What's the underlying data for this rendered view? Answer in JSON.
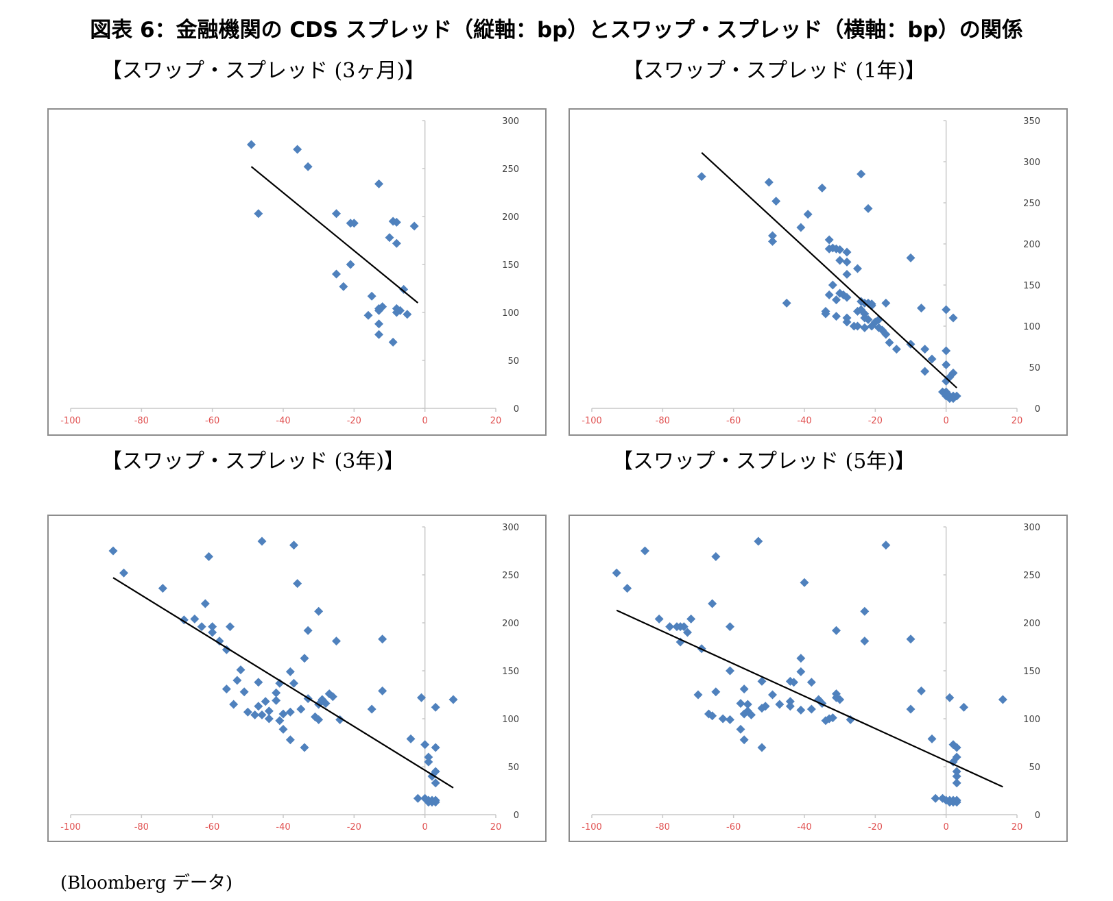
{
  "figure_title": "図表 6：金融機関の CDS スプレッド（縦軸：bp）とスワップ・スプレッド（横軸：bp）の関係",
  "source_note": "(Bloomberg データ)",
  "colors": {
    "marker": "#4F81BD",
    "trendline": "#000000",
    "x_tick_label": "#e05050",
    "y_tick_label": "#404040",
    "axis": "#c8c8c8",
    "frame": "#8c8c8c"
  },
  "chart_data": [
    {
      "type": "scatter",
      "title": "【スワップ・スプレッド (3ヶ月)】",
      "xlim": [
        -100,
        20
      ],
      "ylim": [
        0,
        300
      ],
      "x_ticks": [
        "-100",
        "-80",
        "-60",
        "-40",
        "-20",
        "0",
        "20"
      ],
      "y_ticks": [
        "0",
        "50",
        "100",
        "150",
        "200",
        "250",
        "300"
      ],
      "marker": "diamond",
      "trendline": {
        "x": [
          -49,
          -2
        ],
        "y": [
          252,
          110
        ]
      },
      "points": [
        [
          -49,
          275
        ],
        [
          -36,
          270
        ],
        [
          -33,
          252
        ],
        [
          -47,
          203
        ],
        [
          -25,
          203
        ],
        [
          -21,
          193
        ],
        [
          -20,
          193
        ],
        [
          -13,
          234
        ],
        [
          -9,
          195
        ],
        [
          -8,
          194
        ],
        [
          -3,
          190
        ],
        [
          -10,
          178
        ],
        [
          -8,
          172
        ],
        [
          -21,
          150
        ],
        [
          -25,
          140
        ],
        [
          -23,
          127
        ],
        [
          -6,
          124
        ],
        [
          -15,
          117
        ],
        [
          -12,
          106
        ],
        [
          -13,
          104
        ],
        [
          -8,
          104
        ],
        [
          -7,
          102
        ],
        [
          -13,
          102
        ],
        [
          -8,
          100
        ],
        [
          -5,
          98
        ],
        [
          -16,
          97
        ],
        [
          -13,
          88
        ],
        [
          -13,
          77
        ],
        [
          -9,
          69
        ]
      ]
    },
    {
      "type": "scatter",
      "title": "【スワップ・スプレッド (1年)】",
      "xlim": [
        -100,
        20
      ],
      "ylim": [
        0,
        350
      ],
      "x_ticks": [
        "-100",
        "-80",
        "-60",
        "-40",
        "-20",
        "0",
        "20"
      ],
      "y_ticks": [
        "0",
        "50",
        "100",
        "150",
        "200",
        "250",
        "300",
        "350"
      ],
      "marker": "diamond",
      "trendline": {
        "x": [
          -69,
          3
        ],
        "y": [
          311,
          25
        ]
      },
      "points": [
        [
          -69,
          282
        ],
        [
          -50,
          275
        ],
        [
          -48,
          252
        ],
        [
          -35,
          268
        ],
        [
          -24,
          285
        ],
        [
          -22,
          243
        ],
        [
          -39,
          236
        ],
        [
          -41,
          220
        ],
        [
          -49,
          210
        ],
        [
          -49,
          203
        ],
        [
          -33,
          205
        ],
        [
          -32,
          195
        ],
        [
          -33,
          194
        ],
        [
          -31,
          194
        ],
        [
          -30,
          193
        ],
        [
          -28,
          190
        ],
        [
          -30,
          180
        ],
        [
          -28,
          178
        ],
        [
          -10,
          183
        ],
        [
          -25,
          170
        ],
        [
          -28,
          163
        ],
        [
          -32,
          150
        ],
        [
          -30,
          140
        ],
        [
          -29,
          138
        ],
        [
          -33,
          138
        ],
        [
          -28,
          135
        ],
        [
          -31,
          132
        ],
        [
          -24,
          130
        ],
        [
          -23,
          128
        ],
        [
          -22,
          128
        ],
        [
          -21,
          125
        ],
        [
          -21,
          127
        ],
        [
          -17,
          128
        ],
        [
          -45,
          128
        ],
        [
          -7,
          122
        ],
        [
          0,
          120
        ],
        [
          -24,
          120
        ],
        [
          -25,
          118
        ],
        [
          -23,
          115
        ],
        [
          -34,
          118
        ],
        [
          -34,
          115
        ],
        [
          -31,
          112
        ],
        [
          -23,
          110
        ],
        [
          -22,
          108
        ],
        [
          -20,
          105
        ],
        [
          -19,
          108
        ],
        [
          -28,
          110
        ],
        [
          -28,
          105
        ],
        [
          -25,
          100
        ],
        [
          -26,
          100
        ],
        [
          -23,
          98
        ],
        [
          -21,
          100
        ],
        [
          -19,
          98
        ],
        [
          -18,
          95
        ],
        [
          -17,
          90
        ],
        [
          -16,
          80
        ],
        [
          -14,
          72
        ],
        [
          -10,
          78
        ],
        [
          -6,
          72
        ],
        [
          -4,
          60
        ],
        [
          0,
          70
        ],
        [
          0,
          53
        ],
        [
          -6,
          45
        ],
        [
          2,
          43
        ],
        [
          0,
          33
        ],
        [
          1,
          38
        ],
        [
          2,
          110
        ],
        [
          -1,
          20
        ],
        [
          0,
          20
        ],
        [
          0,
          15
        ],
        [
          1,
          15
        ],
        [
          2,
          15
        ],
        [
          3,
          15
        ],
        [
          1,
          12
        ],
        [
          2,
          12
        ],
        [
          0,
          17
        ]
      ]
    },
    {
      "type": "scatter",
      "title": "【スワップ・スプレッド (3年)】",
      "xlim": [
        -100,
        20
      ],
      "ylim": [
        0,
        300
      ],
      "x_ticks": [
        "-100",
        "-80",
        "-60",
        "-40",
        "-20",
        "0",
        "20"
      ],
      "y_ticks": [
        "0",
        "50",
        "100",
        "150",
        "200",
        "250",
        "300"
      ],
      "marker": "diamond",
      "trendline": {
        "x": [
          -88,
          8
        ],
        "y": [
          247,
          28
        ]
      },
      "points": [
        [
          -88,
          275
        ],
        [
          -85,
          252
        ],
        [
          -74,
          236
        ],
        [
          -46,
          285
        ],
        [
          -37,
          281
        ],
        [
          -61,
          269
        ],
        [
          -36,
          241
        ],
        [
          -62,
          220
        ],
        [
          -30,
          212
        ],
        [
          -68,
          203
        ],
        [
          -65,
          204
        ],
        [
          -60,
          196
        ],
        [
          -63,
          196
        ],
        [
          -55,
          196
        ],
        [
          -60,
          190
        ],
        [
          -58,
          181
        ],
        [
          -56,
          172
        ],
        [
          -25,
          181
        ],
        [
          -12,
          183
        ],
        [
          -33,
          192
        ],
        [
          -34,
          163
        ],
        [
          -52,
          151
        ],
        [
          -38,
          149
        ],
        [
          -53,
          140
        ],
        [
          -47,
          138
        ],
        [
          -41,
          137
        ],
        [
          -37,
          137
        ],
        [
          -12,
          129
        ],
        [
          -56,
          131
        ],
        [
          -51,
          128
        ],
        [
          -29,
          120
        ],
        [
          -33,
          121
        ],
        [
          -27,
          126
        ],
        [
          -26,
          123
        ],
        [
          -42,
          127
        ],
        [
          -45,
          118
        ],
        [
          -42,
          119
        ],
        [
          -28,
          116
        ],
        [
          -30,
          115
        ],
        [
          -47,
          113
        ],
        [
          -35,
          110
        ],
        [
          -15,
          110
        ],
        [
          -54,
          115
        ],
        [
          -50,
          107
        ],
        [
          -38,
          107
        ],
        [
          -40,
          105
        ],
        [
          -44,
          108
        ],
        [
          -46,
          104
        ],
        [
          -48,
          104
        ],
        [
          -44,
          100
        ],
        [
          -41,
          98
        ],
        [
          -31,
          102
        ],
        [
          -30,
          99
        ],
        [
          -24,
          99
        ],
        [
          -40,
          89
        ],
        [
          -38,
          78
        ],
        [
          -34,
          70
        ],
        [
          -4,
          79
        ],
        [
          -1,
          122
        ],
        [
          3,
          112
        ],
        [
          8,
          120
        ],
        [
          0,
          73
        ],
        [
          3,
          70
        ],
        [
          1,
          60
        ],
        [
          1,
          55
        ],
        [
          3,
          45
        ],
        [
          2,
          40
        ],
        [
          3,
          33
        ],
        [
          -2,
          17
        ],
        [
          0,
          17
        ],
        [
          1,
          15
        ],
        [
          2,
          15
        ],
        [
          3,
          15
        ],
        [
          1,
          13
        ],
        [
          2,
          13
        ],
        [
          3,
          13
        ]
      ]
    },
    {
      "type": "scatter",
      "title": "【スワップ・スプレッド (5年)】",
      "xlim": [
        -100,
        20
      ],
      "ylim": [
        0,
        300
      ],
      "x_ticks": [
        "-100",
        "-80",
        "-60",
        "-40",
        "-20",
        "0",
        "20"
      ],
      "y_ticks": [
        "0",
        "50",
        "100",
        "150",
        "200",
        "250",
        "300"
      ],
      "marker": "diamond",
      "trendline": {
        "x": [
          -93,
          16
        ],
        "y": [
          213,
          29
        ]
      },
      "points": [
        [
          -93,
          252
        ],
        [
          -90,
          236
        ],
        [
          -85,
          275
        ],
        [
          -53,
          285
        ],
        [
          -17,
          281
        ],
        [
          -65,
          269
        ],
        [
          -40,
          242
        ],
        [
          -66,
          220
        ],
        [
          -23,
          212
        ],
        [
          -81,
          204
        ],
        [
          -76,
          196
        ],
        [
          -78,
          196
        ],
        [
          -75,
          196
        ],
        [
          -74,
          196
        ],
        [
          -73,
          190
        ],
        [
          -75,
          180
        ],
        [
          -72,
          204
        ],
        [
          -61,
          196
        ],
        [
          -31,
          192
        ],
        [
          -23,
          181
        ],
        [
          -10,
          183
        ],
        [
          -69,
          173
        ],
        [
          -41,
          163
        ],
        [
          -61,
          150
        ],
        [
          -41,
          149
        ],
        [
          -44,
          139
        ],
        [
          -43,
          138
        ],
        [
          -52,
          139
        ],
        [
          -38,
          138
        ],
        [
          -7,
          129
        ],
        [
          -57,
          131
        ],
        [
          -65,
          128
        ],
        [
          -70,
          125
        ],
        [
          -49,
          125
        ],
        [
          -31,
          126
        ],
        [
          -31,
          122
        ],
        [
          -30,
          120
        ],
        [
          -36,
          120
        ],
        [
          -35,
          116
        ],
        [
          -44,
          118
        ],
        [
          -47,
          115
        ],
        [
          -51,
          113
        ],
        [
          -56,
          115
        ],
        [
          -38,
          110
        ],
        [
          -44,
          113
        ],
        [
          -41,
          109
        ],
        [
          -10,
          110
        ],
        [
          -58,
          116
        ],
        [
          -56,
          108
        ],
        [
          -57,
          105
        ],
        [
          -52,
          111
        ],
        [
          -55,
          104
        ],
        [
          -63,
          100
        ],
        [
          -67,
          105
        ],
        [
          -66,
          103
        ],
        [
          -61,
          99
        ],
        [
          -33,
          100
        ],
        [
          -34,
          98
        ],
        [
          -32,
          101
        ],
        [
          -27,
          99
        ],
        [
          -58,
          89
        ],
        [
          -57,
          78
        ],
        [
          -52,
          70
        ],
        [
          -4,
          79
        ],
        [
          1,
          122
        ],
        [
          5,
          112
        ],
        [
          16,
          120
        ],
        [
          2,
          73
        ],
        [
          3,
          70
        ],
        [
          3,
          60
        ],
        [
          2,
          55
        ],
        [
          3,
          45
        ],
        [
          3,
          40
        ],
        [
          3,
          33
        ],
        [
          -3,
          17
        ],
        [
          -1,
          17
        ],
        [
          0,
          15
        ],
        [
          1,
          15
        ],
        [
          2,
          15
        ],
        [
          3,
          13
        ],
        [
          2,
          13
        ],
        [
          1,
          13
        ],
        [
          3,
          15
        ]
      ]
    }
  ]
}
